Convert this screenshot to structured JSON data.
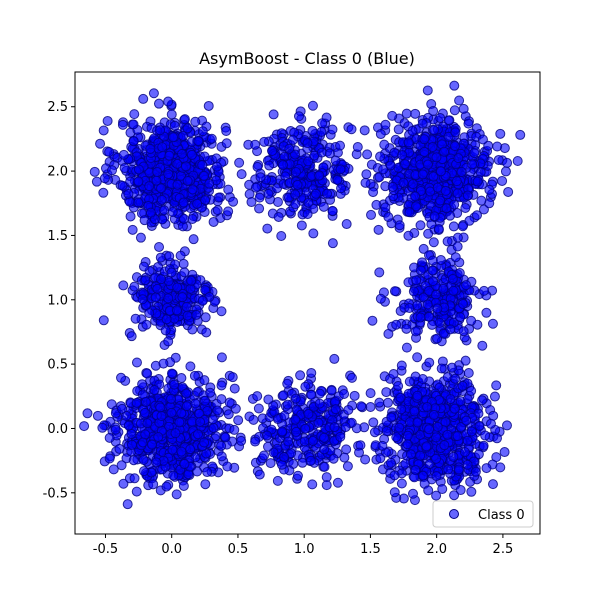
{
  "chart_data": {
    "type": "scatter",
    "title": "AsymBoost - Class 0 (Blue)",
    "xlabel": "",
    "ylabel": "",
    "xlim": [
      -0.73,
      2.78
    ],
    "ylim": [
      -0.82,
      2.77
    ],
    "xticks": [
      "-0.5",
      "0.0",
      "0.5",
      "1.0",
      "1.5",
      "2.0",
      "2.5"
    ],
    "xtick_values": [
      -0.5,
      0.0,
      0.5,
      1.0,
      1.5,
      2.0,
      2.5
    ],
    "yticks": [
      "-0.5",
      "0.0",
      "0.5",
      "1.0",
      "1.5",
      "2.0",
      "2.5"
    ],
    "ytick_values": [
      -0.5,
      0.0,
      0.5,
      1.0,
      1.5,
      2.0,
      2.5
    ],
    "grid": false,
    "legend_position": "bottom-right",
    "series": [
      {
        "name": "Class 0",
        "color": "#0000ff",
        "edge_color": "#000080",
        "alpha": 0.6,
        "clusters": [
          {
            "center": [
              0.0,
              2.0
            ],
            "spread": 0.2,
            "count": 700
          },
          {
            "center": [
              1.0,
              2.0
            ],
            "spread": 0.18,
            "count": 300
          },
          {
            "center": [
              2.0,
              2.0
            ],
            "spread": 0.2,
            "count": 700
          },
          {
            "center": [
              0.0,
              1.0
            ],
            "spread": 0.16,
            "count": 250
          },
          {
            "center": [
              2.0,
              1.0
            ],
            "spread": 0.16,
            "count": 250
          },
          {
            "center": [
              0.0,
              0.0
            ],
            "spread": 0.2,
            "count": 700
          },
          {
            "center": [
              1.0,
              0.0
            ],
            "spread": 0.18,
            "count": 300
          },
          {
            "center": [
              2.0,
              0.0
            ],
            "spread": 0.2,
            "count": 700
          }
        ]
      }
    ]
  }
}
